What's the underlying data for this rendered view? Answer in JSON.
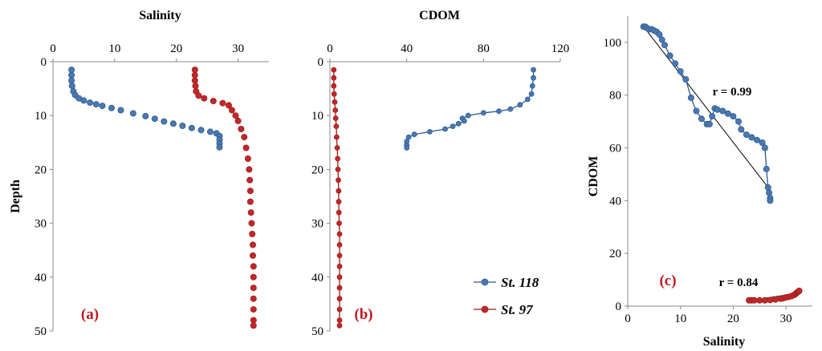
{
  "colors": {
    "st118": "#2e5b8e",
    "st118_fill": "#4a78b2",
    "st97": "#a01c1c",
    "st97_fill": "#c0282a",
    "label_red": "#c0181e"
  },
  "chart_data": [
    {
      "id": "a",
      "type": "scatter",
      "panel_label": "(a)",
      "title": "Salinity",
      "xlabel": "Salinity",
      "ylabel": "Depth",
      "xlim": [
        0,
        35
      ],
      "ylim": [
        0,
        50
      ],
      "y_inverted": true,
      "x_axis_position": "top",
      "xticks": [
        "0",
        "10",
        "20",
        "30"
      ],
      "yticks": [
        "0",
        "10",
        "20",
        "30",
        "40",
        "50"
      ],
      "series": [
        {
          "name": "St. 118",
          "points": [
            [
              3.0,
              1.5
            ],
            [
              3.0,
              2.5
            ],
            [
              3.0,
              3.5
            ],
            [
              3.1,
              4.5
            ],
            [
              3.3,
              5.5
            ],
            [
              3.6,
              6.2
            ],
            [
              4.2,
              6.8
            ],
            [
              5.0,
              7.2
            ],
            [
              6.0,
              7.6
            ],
            [
              7.0,
              7.9
            ],
            [
              8.0,
              8.2
            ],
            [
              9.5,
              8.6
            ],
            [
              11.0,
              9.0
            ],
            [
              13.0,
              9.6
            ],
            [
              15.0,
              10.1
            ],
            [
              16.5,
              10.6
            ],
            [
              18.0,
              11.1
            ],
            [
              19.5,
              11.5
            ],
            [
              21.0,
              11.9
            ],
            [
              22.5,
              12.3
            ],
            [
              24.0,
              12.7
            ],
            [
              25.5,
              13.0
            ],
            [
              26.5,
              13.3
            ],
            [
              27.0,
              13.8
            ],
            [
              27.0,
              14.5
            ],
            [
              27.0,
              15.2
            ],
            [
              27.0,
              15.9
            ]
          ]
        },
        {
          "name": "St. 97",
          "points": [
            [
              23.0,
              1.5
            ],
            [
              23.0,
              2.5
            ],
            [
              23.0,
              3.5
            ],
            [
              23.1,
              4.5
            ],
            [
              23.2,
              5.5
            ],
            [
              23.6,
              6.3
            ],
            [
              24.5,
              6.8
            ],
            [
              26.0,
              7.3
            ],
            [
              27.5,
              7.7
            ],
            [
              28.5,
              8.1
            ],
            [
              29.0,
              9.0
            ],
            [
              29.6,
              10.0
            ],
            [
              30.0,
              11.0
            ],
            [
              30.5,
              12.5
            ],
            [
              31.0,
              14.0
            ],
            [
              31.3,
              16.0
            ],
            [
              31.6,
              18.0
            ],
            [
              31.8,
              20.0
            ],
            [
              31.9,
              22.0
            ],
            [
              32.0,
              24.0
            ],
            [
              32.0,
              26.0
            ],
            [
              32.1,
              28.0
            ],
            [
              32.2,
              30.0
            ],
            [
              32.3,
              32.0
            ],
            [
              32.4,
              34.0
            ],
            [
              32.4,
              36.0
            ],
            [
              32.5,
              38.0
            ],
            [
              32.5,
              40.0
            ],
            [
              32.5,
              42.0
            ],
            [
              32.5,
              44.0
            ],
            [
              32.5,
              46.0
            ],
            [
              32.5,
              48.0
            ],
            [
              32.5,
              49.0
            ]
          ]
        }
      ]
    },
    {
      "id": "b",
      "type": "line",
      "panel_label": "(b)",
      "title": "CDOM",
      "xlabel": "CDOM",
      "xlim": [
        0,
        120
      ],
      "ylim": [
        0,
        50
      ],
      "y_inverted": true,
      "x_axis_position": "top",
      "xticks": [
        "0",
        "40",
        "80",
        "120"
      ],
      "yticks": [
        "0",
        "10",
        "20",
        "30",
        "40",
        "50"
      ],
      "legend": {
        "position": "bottom-right",
        "entries": [
          "St. 118",
          "St. 97"
        ]
      },
      "series": [
        {
          "name": "St. 118",
          "points": [
            [
              106,
              1.5
            ],
            [
              106,
              3.0
            ],
            [
              105.5,
              4.5
            ],
            [
              105,
              6.0
            ],
            [
              103,
              7.0
            ],
            [
              99,
              8.0
            ],
            [
              94,
              8.8
            ],
            [
              88,
              9.2
            ],
            [
              80,
              9.5
            ],
            [
              72,
              10.0
            ],
            [
              69,
              10.5
            ],
            [
              70,
              11.0
            ],
            [
              67,
              11.5
            ],
            [
              64,
              12.0
            ],
            [
              60,
              12.5
            ],
            [
              52,
              13.0
            ],
            [
              44,
              13.5
            ],
            [
              41,
              14.0
            ],
            [
              40,
              14.8
            ],
            [
              40,
              15.5
            ],
            [
              40,
              16.0
            ]
          ]
        },
        {
          "name": "St. 97",
          "points": [
            [
              2,
              1.5
            ],
            [
              2,
              3.0
            ],
            [
              2,
              4.5
            ],
            [
              2.2,
              6.0
            ],
            [
              2.5,
              7.5
            ],
            [
              2.8,
              9.0
            ],
            [
              3.0,
              10.5
            ],
            [
              3.3,
              12.0
            ],
            [
              3.5,
              14.0
            ],
            [
              3.8,
              16.0
            ],
            [
              4.0,
              18.0
            ],
            [
              4.2,
              20.0
            ],
            [
              4.4,
              22.0
            ],
            [
              4.5,
              24.0
            ],
            [
              4.6,
              26.0
            ],
            [
              4.7,
              28.0
            ],
            [
              4.8,
              30.0
            ],
            [
              5.0,
              32.0
            ],
            [
              5.0,
              34.0
            ],
            [
              5.0,
              36.0
            ],
            [
              5.0,
              38.0
            ],
            [
              5.0,
              40.0
            ],
            [
              5.0,
              42.0
            ],
            [
              5.0,
              44.0
            ],
            [
              5.0,
              46.0
            ],
            [
              5.0,
              48.0
            ],
            [
              5.0,
              49.0
            ]
          ]
        }
      ]
    },
    {
      "id": "c",
      "type": "scatter",
      "panel_label": "(c)",
      "xlabel": "Salinity",
      "ylabel": "CDOM",
      "xlim": [
        0,
        35
      ],
      "ylim": [
        0,
        110
      ],
      "xticks": [
        "0",
        "10",
        "20",
        "30"
      ],
      "yticks": [
        "0",
        "20",
        "40",
        "60",
        "80",
        "100"
      ],
      "annotations": [
        "r = 0.99",
        "r = 0.84"
      ],
      "fit_lines": [
        {
          "series": "St. 118",
          "from": [
            3,
            106
          ],
          "to": [
            27,
            44
          ]
        },
        {
          "series": "St. 97",
          "from": [
            23,
            2
          ],
          "to": [
            32.5,
            5
          ]
        }
      ],
      "series": [
        {
          "name": "St. 118",
          "points": [
            [
              3.0,
              106
            ],
            [
              3.3,
              106
            ],
            [
              3.6,
              105.5
            ],
            [
              4.0,
              105
            ],
            [
              4.5,
              105
            ],
            [
              5.0,
              104.5
            ],
            [
              5.5,
              104
            ],
            [
              6.0,
              103
            ],
            [
              6.5,
              101
            ],
            [
              7.0,
              99
            ],
            [
              8.0,
              95
            ],
            [
              9.0,
              92
            ],
            [
              10.0,
              89
            ],
            [
              11.0,
              86
            ],
            [
              12.0,
              79
            ],
            [
              13.0,
              74
            ],
            [
              14.0,
              71
            ],
            [
              15.0,
              69
            ],
            [
              15.5,
              69
            ],
            [
              16.0,
              72
            ],
            [
              16.5,
              75
            ],
            [
              17.0,
              74.5
            ],
            [
              18.0,
              74
            ],
            [
              19.0,
              73
            ],
            [
              20.0,
              72
            ],
            [
              21.0,
              70
            ],
            [
              21.5,
              67
            ],
            [
              22.5,
              65
            ],
            [
              23.5,
              64
            ],
            [
              24.5,
              63
            ],
            [
              25.5,
              62
            ],
            [
              26.0,
              60
            ],
            [
              26.3,
              52
            ],
            [
              26.6,
              45
            ],
            [
              26.8,
              43
            ],
            [
              27.0,
              41
            ],
            [
              27.0,
              40
            ]
          ]
        },
        {
          "name": "St. 97",
          "points": [
            [
              23.0,
              2.2
            ],
            [
              23.5,
              2.2
            ],
            [
              24.0,
              2.2
            ],
            [
              25.0,
              2.2
            ],
            [
              26.0,
              2.2
            ],
            [
              27.0,
              2.3
            ],
            [
              28.0,
              2.5
            ],
            [
              29.0,
              2.8
            ],
            [
              29.5,
              3.0
            ],
            [
              30.0,
              3.3
            ],
            [
              30.5,
              3.5
            ],
            [
              31.0,
              3.8
            ],
            [
              31.5,
              4.2
            ],
            [
              31.8,
              4.6
            ],
            [
              32.0,
              5.0
            ],
            [
              32.2,
              5.3
            ],
            [
              32.4,
              5.6
            ],
            [
              32.5,
              5.8
            ]
          ]
        }
      ]
    }
  ]
}
